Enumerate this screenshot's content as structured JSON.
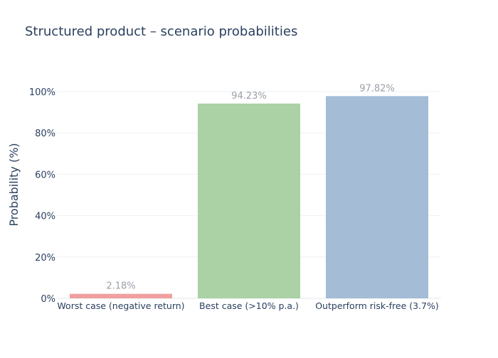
{
  "chart_data": {
    "type": "bar",
    "title": "Structured product – scenario probabilities",
    "xlabel": "",
    "ylabel": "Probability (%)",
    "categories": [
      "Worst case (negative return)",
      "Best case (>10% p.a.)",
      "Outperform risk-free (3.7%)"
    ],
    "values": [
      2.18,
      94.23,
      97.82
    ],
    "data_labels": [
      "2.18%",
      "94.23%",
      "97.82%"
    ],
    "colors": [
      "#ef9a9a",
      "#a5d09f",
      "#9fb8d3"
    ],
    "ylim": [
      0,
      100
    ],
    "yticks": [
      0,
      20,
      40,
      60,
      80,
      100
    ],
    "ytick_labels": [
      "0%",
      "20%",
      "40%",
      "60%",
      "80%",
      "100%"
    ],
    "grid": true,
    "legend": "none"
  }
}
